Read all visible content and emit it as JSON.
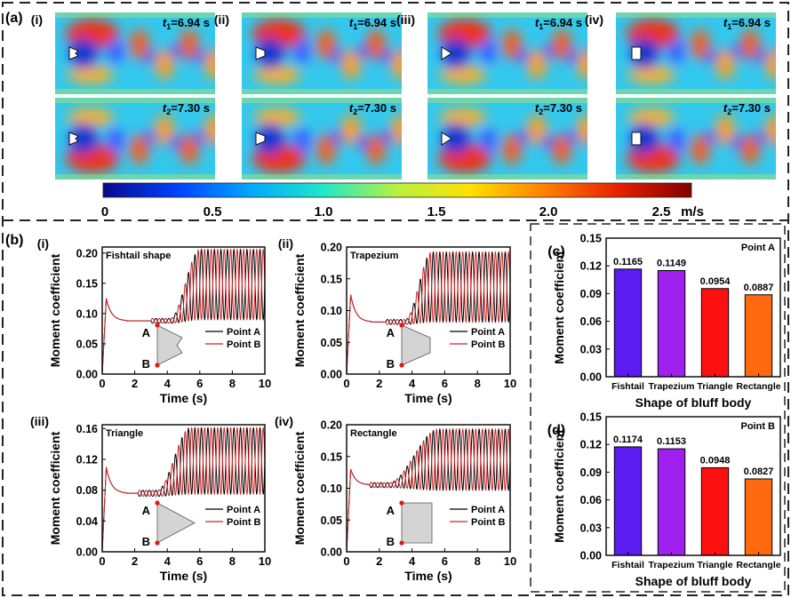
{
  "panel_a": {
    "label": "(a)",
    "colorbar": {
      "ticks": [
        "0",
        "0.5",
        "1.0",
        "1.5",
        "2.0",
        "2.5"
      ],
      "unit": "m/s",
      "stops": [
        "#0a0a8c",
        "#0040ff",
        "#00a8ff",
        "#20e8c8",
        "#b8f040",
        "#ffe000",
        "#ff8000",
        "#e82000",
        "#800000"
      ]
    },
    "columns": [
      {
        "label": "(i)",
        "shape": "fishtail"
      },
      {
        "label": "(ii)",
        "shape": "trapezium"
      },
      {
        "label": "(iii)",
        "shape": "triangle"
      },
      {
        "label": "(iv)",
        "shape": "rectangle"
      }
    ],
    "rows": [
      {
        "time_var": "t",
        "time_sub": "1",
        "time_value": "=6.94 s"
      },
      {
        "time_var": "t",
        "time_sub": "2",
        "time_value": "=7.30 s"
      }
    ]
  },
  "panel_b": {
    "label": "(b)",
    "legend": {
      "a": "Point A",
      "b": "Point B",
      "color_a": "#000000",
      "color_b": "#d42020"
    },
    "point_labels": {
      "a": "A",
      "b": "B"
    },
    "plots": [
      {
        "sub": "(i)",
        "title": "Fishtail shape",
        "shape": "fishtail"
      },
      {
        "sub": "(ii)",
        "title": "Trapezium",
        "shape": "trapezium"
      },
      {
        "sub": "(iii)",
        "title": "Triangle",
        "shape": "triangle"
      },
      {
        "sub": "(iv)",
        "title": "Rectangle",
        "shape": "rectangle"
      }
    ]
  },
  "panel_c": {
    "label": "(c)",
    "point": "Point A"
  },
  "panel_d": {
    "label": "(d)",
    "point": "Point B"
  },
  "chart_data": [
    {
      "type": "line",
      "id": "b-i",
      "title": "Fishtail shape",
      "xlabel": "Time (s)",
      "ylabel": "Moment coefficient",
      "xlim": [
        0,
        10
      ],
      "ylim": [
        0,
        0.21
      ],
      "xticks": [
        0,
        2,
        4,
        6,
        8,
        10
      ],
      "yticks": [
        0.0,
        0.05,
        0.1,
        0.15,
        0.2
      ],
      "ytick_labels": [
        "0.00",
        "0.05",
        "0.10",
        "0.15",
        "0.20"
      ],
      "model": {
        "peak": 0.125,
        "plateau": 0.088,
        "osc_start": 4.2,
        "growth_end": 6.0,
        "mean": 0.148,
        "amp": 0.058,
        "freq": 2.5
      },
      "series": [
        {
          "name": "Point A",
          "color": "#000000",
          "phase": 0
        },
        {
          "name": "Point B",
          "color": "#d42020",
          "phase": 3.1416
        }
      ]
    },
    {
      "type": "line",
      "id": "b-ii",
      "title": "Trapezium",
      "xlabel": "Time (s)",
      "ylabel": "Moment coefficient",
      "xlim": [
        0,
        10
      ],
      "ylim": [
        0,
        0.2
      ],
      "xticks": [
        0,
        2,
        4,
        6,
        8,
        10
      ],
      "yticks": [
        0.0,
        0.05,
        0.1,
        0.15,
        0.2
      ],
      "ytick_labels": [
        "0.00",
        "0.05",
        "0.10",
        "0.15",
        "0.20"
      ],
      "model": {
        "peak": 0.125,
        "plateau": 0.082,
        "osc_start": 3.6,
        "growth_end": 5.2,
        "mean": 0.137,
        "amp": 0.055,
        "freq": 2.5
      },
      "series": [
        {
          "name": "Point A",
          "color": "#000000",
          "phase": 0
        },
        {
          "name": "Point B",
          "color": "#d42020",
          "phase": 3.1416
        }
      ]
    },
    {
      "type": "line",
      "id": "b-iii",
      "title": "Triangle",
      "xlabel": "Time (s)",
      "ylabel": "Moment coefficient",
      "xlim": [
        0,
        10
      ],
      "ylim": [
        0,
        0.165
      ],
      "xticks": [
        0,
        2,
        4,
        6,
        8,
        10
      ],
      "yticks": [
        0.0,
        0.04,
        0.08,
        0.12,
        0.16
      ],
      "ytick_labels": [
        "0.00",
        "0.04",
        "0.08",
        "0.12",
        "0.16"
      ],
      "model": {
        "peak": 0.11,
        "plateau": 0.076,
        "osc_start": 3.4,
        "growth_end": 5.4,
        "mean": 0.118,
        "amp": 0.043,
        "freq": 2.5
      },
      "series": [
        {
          "name": "Point A",
          "color": "#000000",
          "phase": 0
        },
        {
          "name": "Point B",
          "color": "#d42020",
          "phase": 3.1416
        }
      ]
    },
    {
      "type": "line",
      "id": "b-iv",
      "title": "Rectangle",
      "xlabel": "Time (s)",
      "ylabel": "Moment coefficient",
      "xlim": [
        0,
        10
      ],
      "ylim": [
        0,
        0.2
      ],
      "xticks": [
        0,
        2,
        4,
        6,
        8,
        10
      ],
      "yticks": [
        0.0,
        0.05,
        0.1,
        0.15,
        0.2
      ],
      "ytick_labels": [
        "0.00",
        "0.05",
        "0.10",
        "0.15",
        "0.20"
      ],
      "model": {
        "peak": 0.13,
        "plateau": 0.105,
        "osc_start": 2.6,
        "growth_end": 5.6,
        "mean": 0.145,
        "amp": 0.048,
        "freq": 2.5
      },
      "series": [
        {
          "name": "Point A",
          "color": "#000000",
          "phase": 0
        },
        {
          "name": "Point B",
          "color": "#d42020",
          "phase": 3.1416
        }
      ]
    },
    {
      "type": "bar",
      "id": "c",
      "title": "Point A",
      "categories": [
        "Fishtail",
        "Trapezium",
        "Triangle",
        "Rectangle"
      ],
      "values": [
        0.1165,
        0.1149,
        0.0954,
        0.0887
      ],
      "value_labels": [
        "0.1165",
        "0.1149",
        "0.0954",
        "0.0887"
      ],
      "colors": [
        "#5a1cf0",
        "#a020f0",
        "#ff1010",
        "#ff6a10"
      ],
      "xlabel": "Shape of bluff body",
      "ylabel": "Moment coefficient",
      "ylim": [
        0,
        0.15
      ],
      "yticks": [
        0,
        0.03,
        0.06,
        0.09,
        0.12,
        0.15
      ],
      "ytick_labels": [
        "0.00",
        "0.03",
        "0.06",
        "0.09",
        "0.12",
        "0.15"
      ]
    },
    {
      "type": "bar",
      "id": "d",
      "title": "Point B",
      "categories": [
        "Fishtail",
        "Trapezium",
        "Triangle",
        "Rectangle"
      ],
      "values": [
        0.1174,
        0.1153,
        0.0948,
        0.0827
      ],
      "value_labels": [
        "0.1174",
        "0.1153",
        "0.0948",
        "0.0827"
      ],
      "colors": [
        "#5a1cf0",
        "#a020f0",
        "#ff1010",
        "#ff6a10"
      ],
      "xlabel": "Shape of bluff body",
      "ylabel": "Moment coefficient",
      "ylim": [
        0,
        0.15
      ],
      "yticks": [
        0,
        0.03,
        0.06,
        0.09,
        0.12,
        0.15
      ],
      "ytick_labels": [
        "0.00",
        "0.03",
        "0.06",
        "0.09",
        "0.12",
        "0.15"
      ]
    }
  ]
}
